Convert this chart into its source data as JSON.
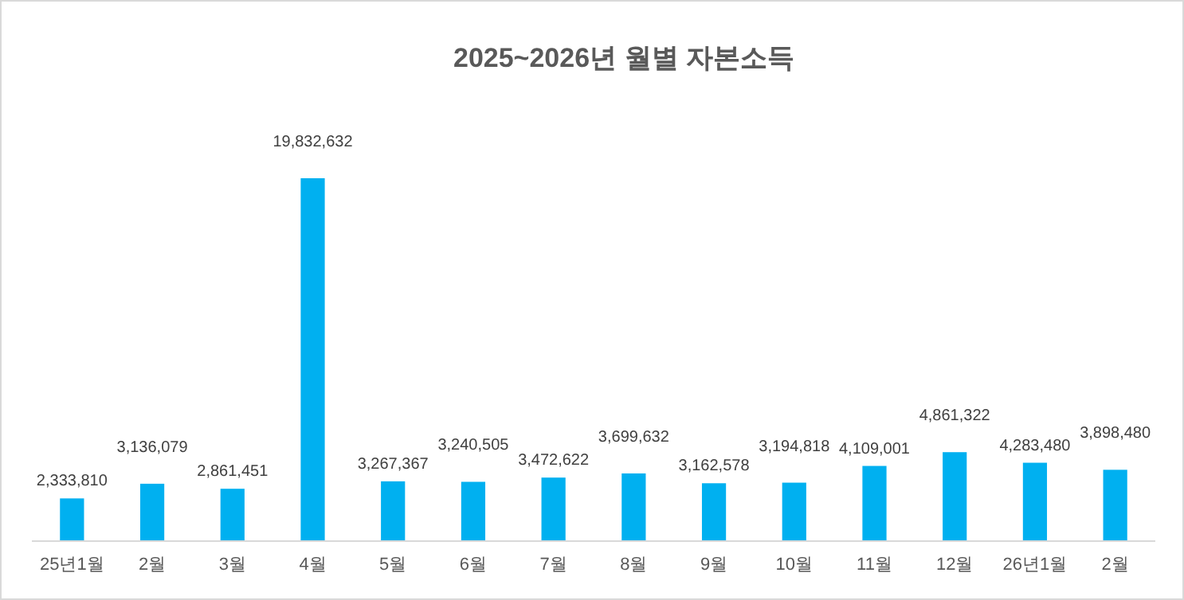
{
  "chart_data": {
    "type": "bar",
    "title": "2025~2026년 월별 자본소득",
    "categories": [
      "25년1월",
      "2월",
      "3월",
      "4월",
      "5월",
      "6월",
      "7월",
      "8월",
      "9월",
      "10월",
      "11월",
      "12월",
      "26년1월",
      "2월"
    ],
    "values": [
      2333810,
      3136079,
      2861451,
      19832632,
      3267367,
      3240505,
      3472622,
      3699632,
      3162578,
      3194818,
      4109001,
      4861322,
      4283480,
      3898480
    ],
    "value_labels": [
      "2,333,810",
      "3,136,079",
      "2,861,451",
      "19,832,632",
      "3,267,367",
      "3,240,505",
      "3,472,622",
      "3,699,632",
      "3,162,578",
      "3,194,818",
      "4,109,001",
      "4,861,322",
      "4,283,480",
      "3,898,480"
    ],
    "color": "#00b0f0"
  }
}
